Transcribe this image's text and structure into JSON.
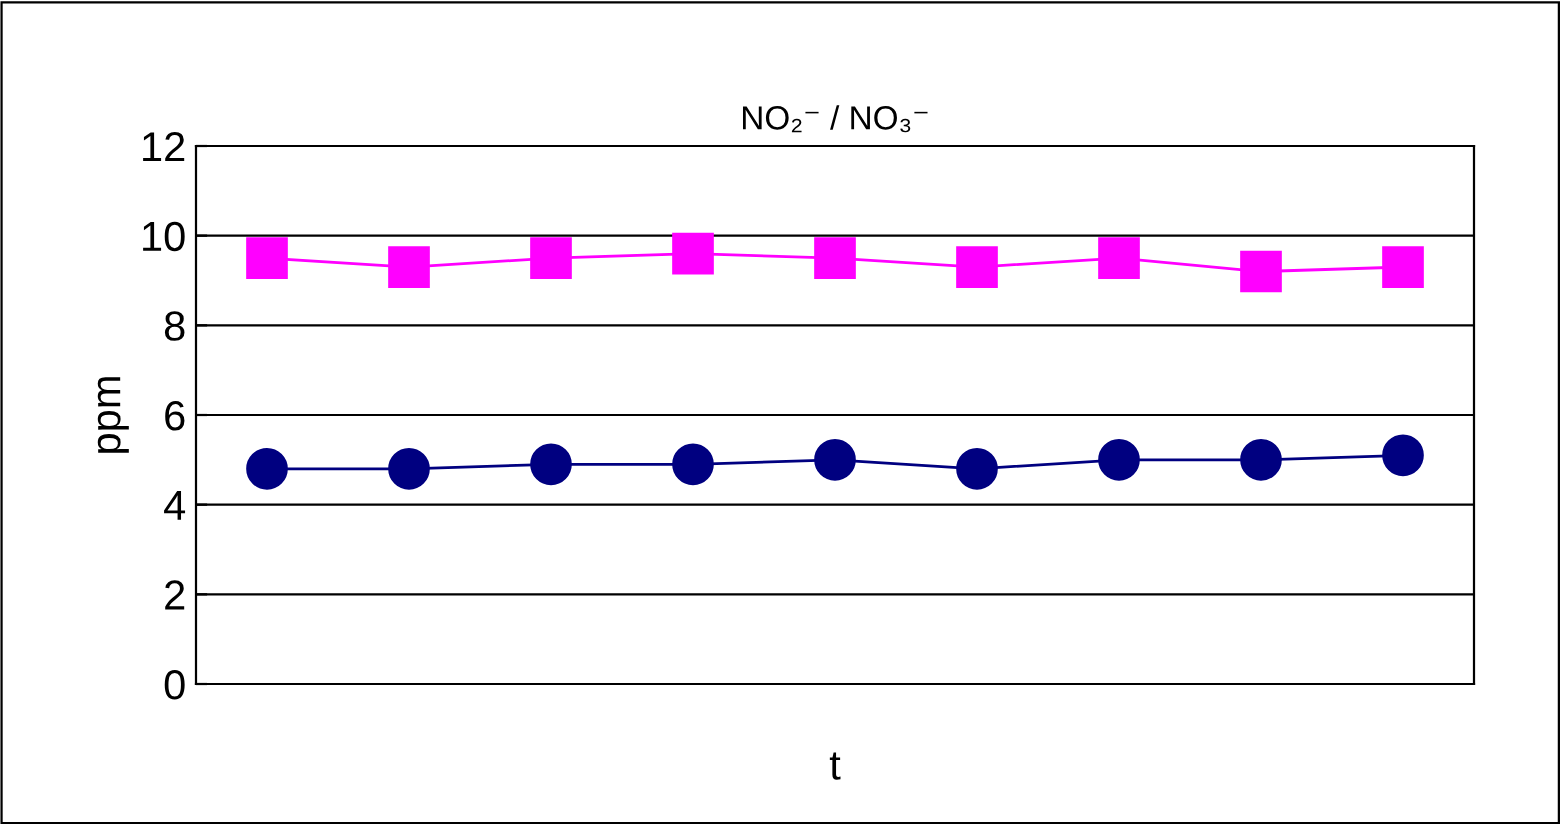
{
  "chart_data": {
    "type": "line",
    "title": "NO₂⁻ / NO₃⁻",
    "xlabel": "t",
    "ylabel": "ppm",
    "categories": [
      null,
      null,
      null,
      null,
      null,
      null,
      null,
      null,
      null
    ],
    "series": [
      {
        "color": "#ff00ff",
        "marker": "square",
        "values": [
          9.5,
          9.3,
          9.5,
          9.6,
          9.5,
          9.3,
          9.5,
          9.2,
          9.3
        ]
      },
      {
        "color": "#000080",
        "marker": "circle",
        "values": [
          4.8,
          4.8,
          4.9,
          4.9,
          5.0,
          4.8,
          5.0,
          5.0,
          5.1
        ]
      }
    ],
    "ylim": [
      0,
      12
    ],
    "yticks": [
      0,
      2,
      4,
      6,
      8,
      10,
      12
    ],
    "grid": "y",
    "legend": false
  }
}
